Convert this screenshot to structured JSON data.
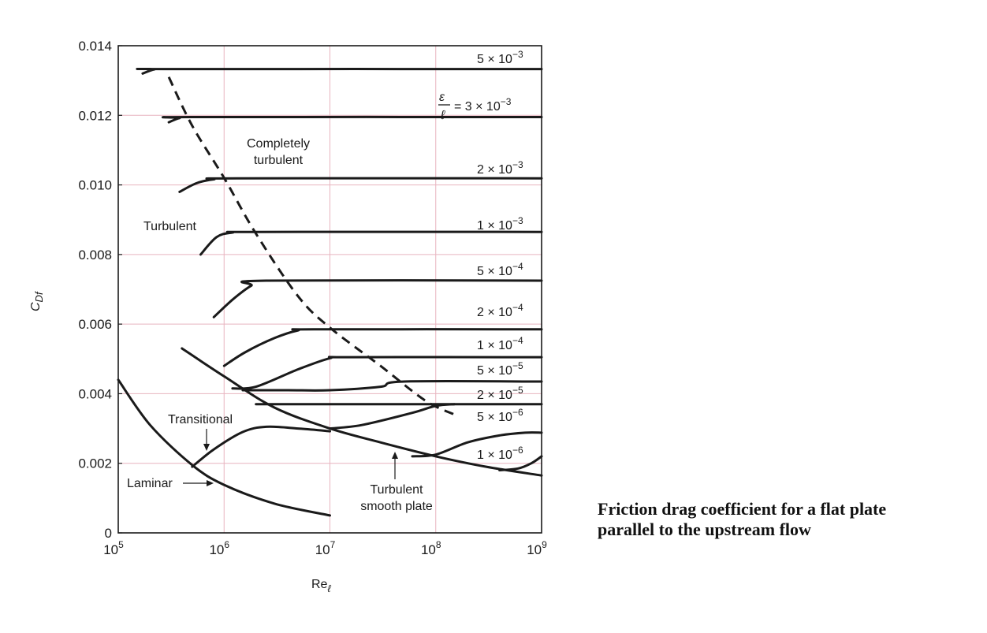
{
  "caption": {
    "line1": "Friction drag coefficient for a flat plate",
    "line2": "parallel to the upstream flow"
  },
  "colors": {
    "grid": "#e8b4bf",
    "ink": "#1a1a1a"
  },
  "chart_data": {
    "type": "line",
    "xscale": "log",
    "xlim": [
      100000,
      1000000000
    ],
    "ylim": [
      0,
      0.014
    ],
    "grid": true,
    "xlabel": "Re",
    "xlabel_sub": "ℓ",
    "ylabel": "C",
    "ylabel_sub": "Df",
    "xticks": [
      {
        "value": 100000,
        "base": "10",
        "exp": "5"
      },
      {
        "value": 1000000,
        "base": "10",
        "exp": "6"
      },
      {
        "value": 10000000,
        "base": "10",
        "exp": "7"
      },
      {
        "value": 100000000,
        "base": "10",
        "exp": "8"
      },
      {
        "value": 1000000000,
        "base": "10",
        "exp": "9"
      }
    ],
    "yticks": [
      {
        "value": 0,
        "label": "0"
      },
      {
        "value": 0.002,
        "label": "0.002"
      },
      {
        "value": 0.004,
        "label": "0.004"
      },
      {
        "value": 0.006,
        "label": "0.006"
      },
      {
        "value": 0.008,
        "label": "0.008"
      },
      {
        "value": 0.01,
        "label": "0.010"
      },
      {
        "value": 0.012,
        "label": "0.012"
      },
      {
        "value": 0.014,
        "label": "0.014"
      }
    ],
    "series": [
      {
        "name": "5 × 10⁻³",
        "coef": "5 ×",
        "exp": "−3",
        "points": [
          [
            170000,
            0.0132
          ],
          [
            220000,
            0.01332
          ],
          [
            300000,
            0.01333
          ],
          [
            1000000000,
            0.01333
          ]
        ]
      },
      {
        "name": "ε/ℓ = 3 × 10⁻³",
        "coef": "3 ×",
        "exp": "−3",
        "points": [
          [
            300000,
            0.0118
          ],
          [
            380000,
            0.01192
          ],
          [
            500000,
            0.01195
          ],
          [
            1000000000,
            0.01195
          ]
        ]
      },
      {
        "name": "2 × 10⁻³",
        "coef": "2 ×",
        "exp": "−3",
        "points": [
          [
            380000,
            0.0098
          ],
          [
            550000,
            0.01005
          ],
          [
            800000,
            0.01016
          ],
          [
            1300000,
            0.01019
          ],
          [
            1000000000,
            0.01019
          ]
        ]
      },
      {
        "name": "1 × 10⁻³",
        "coef": "1 ×",
        "exp": "−3",
        "points": [
          [
            600000,
            0.008
          ],
          [
            850000,
            0.0085
          ],
          [
            1200000,
            0.00863
          ],
          [
            2000000,
            0.00865
          ],
          [
            1000000000,
            0.00865
          ]
        ]
      },
      {
        "name": "5 × 10⁻⁴",
        "coef": "5 ×",
        "exp": "−4",
        "points": [
          [
            800000,
            0.0062
          ],
          [
            1200000,
            0.0067
          ],
          [
            1800000,
            0.0071
          ],
          [
            2500000,
            0.00725
          ],
          [
            1000000000,
            0.00725
          ]
        ]
      },
      {
        "name": "2 × 10⁻⁴",
        "coef": "2 ×",
        "exp": "−4",
        "points": [
          [
            1000000,
            0.0048
          ],
          [
            1600000,
            0.0052
          ],
          [
            3000000,
            0.0056
          ],
          [
            5000000,
            0.00582
          ],
          [
            7000000,
            0.00585
          ],
          [
            1000000000,
            0.00585
          ]
        ]
      },
      {
        "name": "1 × 10⁻⁴",
        "coef": "1 ×",
        "exp": "−4",
        "points": [
          [
            1200000,
            0.00415
          ],
          [
            2000000,
            0.0042
          ],
          [
            5000000,
            0.0047
          ],
          [
            10000000,
            0.00502
          ],
          [
            15000000,
            0.00505
          ],
          [
            1000000000,
            0.00505
          ]
        ]
      },
      {
        "name": "5 × 10⁻⁵",
        "coef": "5 ×",
        "exp": "−5",
        "points": [
          [
            1500000,
            0.0041
          ],
          [
            4000000,
            0.0041
          ],
          [
            10000000,
            0.0041
          ],
          [
            30000000,
            0.0042
          ],
          [
            50000000,
            0.00435
          ],
          [
            1000000000,
            0.00435
          ]
        ]
      },
      {
        "name": "2 × 10⁻⁵",
        "coef": "2 ×",
        "exp": "−5",
        "points": [
          [
            2000000,
            0.0037
          ],
          [
            10000000,
            0.0037
          ],
          [
            30000000,
            0.0037
          ],
          [
            1000000000,
            0.0037
          ]
        ]
      },
      {
        "name": "5 × 10⁻⁶",
        "coef": "5 ×",
        "exp": "−6",
        "points": [
          [
            10000000,
            0.003
          ],
          [
            20000000,
            0.0031
          ],
          [
            60000000,
            0.00345
          ],
          [
            100000000,
            0.00365
          ],
          [
            150000000,
            0.0037
          ]
        ]
      },
      {
        "name": "1 × 10⁻⁶",
        "coef": "1 ×",
        "exp": "−6",
        "points": [
          [
            60000000,
            0.0022
          ],
          [
            100000000,
            0.00225
          ],
          [
            200000000,
            0.0026
          ],
          [
            400000000,
            0.0028
          ],
          [
            700000000,
            0.00288
          ],
          [
            1000000000,
            0.00288
          ]
        ]
      },
      {
        "name": "Turbulent smooth plate",
        "points": [
          [
            400000,
            0.0053
          ],
          [
            1000000,
            0.0045
          ],
          [
            3000000,
            0.0036
          ],
          [
            10000000,
            0.003
          ],
          [
            30000000,
            0.0026
          ],
          [
            100000000,
            0.0022
          ],
          [
            300000000,
            0.0019
          ],
          [
            1000000000,
            0.00165
          ]
        ]
      },
      {
        "name": "Laminar",
        "points": [
          [
            100000,
            0.0044
          ],
          [
            200000,
            0.0031
          ],
          [
            500000,
            0.00195
          ],
          [
            1000000,
            0.00138
          ],
          [
            3000000,
            0.00084
          ],
          [
            10000000,
            0.0005
          ]
        ]
      },
      {
        "name": "Transitional",
        "points": [
          [
            500000,
            0.0019
          ],
          [
            800000,
            0.0024
          ],
          [
            1500000,
            0.0029
          ],
          [
            2500000,
            0.00305
          ],
          [
            5000000,
            0.003
          ],
          [
            10000000,
            0.00292
          ]
        ]
      },
      {
        "name": "Transitional (ε/ℓ = 1 × 10⁻⁶)",
        "points": [
          [
            400000000,
            0.0018
          ],
          [
            600000000,
            0.00185
          ],
          [
            800000000,
            0.002
          ],
          [
            1000000000,
            0.0022
          ]
        ]
      },
      {
        "name": "Completely turbulent boundary",
        "style": "dashed",
        "points": [
          [
            300000,
            0.0131
          ],
          [
            500000,
            0.0117
          ],
          [
            1000000,
            0.0102
          ],
          [
            2000000,
            0.0086
          ],
          [
            5000000,
            0.0068
          ],
          [
            10000000,
            0.0059
          ],
          [
            30000000,
            0.0048
          ],
          [
            80000000,
            0.0038
          ],
          [
            150000000,
            0.0034
          ]
        ]
      }
    ],
    "annotations": [
      {
        "text1": "Completely",
        "text2": "turbulent"
      },
      {
        "text1": "Turbulent"
      },
      {
        "text1": "Transitional"
      },
      {
        "text1": "Laminar"
      },
      {
        "text1": "Turbulent",
        "text2": "smooth plate"
      }
    ]
  }
}
